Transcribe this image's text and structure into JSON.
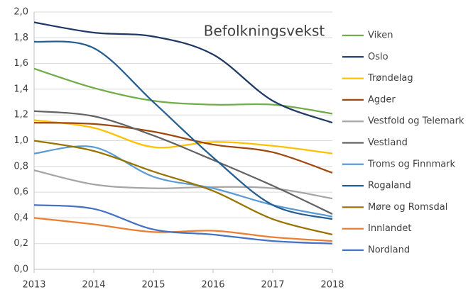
{
  "chart_data": {
    "type": "line",
    "title": "Befolkningsvekst",
    "x": [
      2013,
      2014,
      2015,
      2016,
      2017,
      2018
    ],
    "xlim": [
      2013,
      2018
    ],
    "xticks": [
      2013,
      2014,
      2015,
      2016,
      2017,
      2018
    ],
    "ylim": [
      0,
      2
    ],
    "yticks": [
      {
        "value": 0,
        "label": "0,0"
      },
      {
        "value": 0.2,
        "label": "0,2"
      },
      {
        "value": 0.4,
        "label": "0,4"
      },
      {
        "value": 0.6,
        "label": "0,6"
      },
      {
        "value": 0.8,
        "label": "0,8"
      },
      {
        "value": 1,
        "label": "1,0"
      },
      {
        "value": 1.2,
        "label": "1,2"
      },
      {
        "value": 1.4,
        "label": "1,4"
      },
      {
        "value": 1.6,
        "label": "1,6"
      },
      {
        "value": 1.8,
        "label": "1,8"
      },
      {
        "value": 2,
        "label": "2,0"
      }
    ],
    "grid": true,
    "legend": "right",
    "series": [
      {
        "name": "Viken",
        "color": "#70ad47",
        "values": [
          1.56,
          1.41,
          1.31,
          1.28,
          1.28,
          1.21
        ]
      },
      {
        "name": "Oslo",
        "color": "#203864",
        "values": [
          1.92,
          1.84,
          1.81,
          1.67,
          1.31,
          1.14
        ]
      },
      {
        "name": "Trøndelag",
        "color": "#ffc000",
        "values": [
          1.16,
          1.1,
          0.95,
          0.99,
          0.96,
          0.9
        ]
      },
      {
        "name": "Agder",
        "color": "#9e480e",
        "values": [
          1.14,
          1.13,
          1.07,
          0.97,
          0.91,
          0.75
        ]
      },
      {
        "name": "Vestfold og Telemark",
        "color": "#a5a5a5",
        "values": [
          0.77,
          0.66,
          0.63,
          0.64,
          0.63,
          0.55
        ]
      },
      {
        "name": "Vestland",
        "color": "#636363",
        "values": [
          1.23,
          1.19,
          1.04,
          0.85,
          0.65,
          0.43
        ]
      },
      {
        "name": "Troms og Finnmark",
        "color": "#5b9bd5",
        "values": [
          0.9,
          0.95,
          0.72,
          0.63,
          0.5,
          0.41
        ]
      },
      {
        "name": "Rogaland",
        "color": "#255e91",
        "values": [
          1.77,
          1.72,
          1.3,
          0.87,
          0.5,
          0.39
        ]
      },
      {
        "name": "Møre og Romsdal",
        "color": "#997300",
        "values": [
          1.0,
          0.92,
          0.76,
          0.61,
          0.39,
          0.27
        ]
      },
      {
        "name": "Innlandet",
        "color": "#ed7d31",
        "values": [
          0.4,
          0.35,
          0.29,
          0.3,
          0.25,
          0.22
        ]
      },
      {
        "name": "Nordland",
        "color": "#4472c4",
        "values": [
          0.5,
          0.47,
          0.31,
          0.27,
          0.22,
          0.2
        ]
      }
    ]
  }
}
